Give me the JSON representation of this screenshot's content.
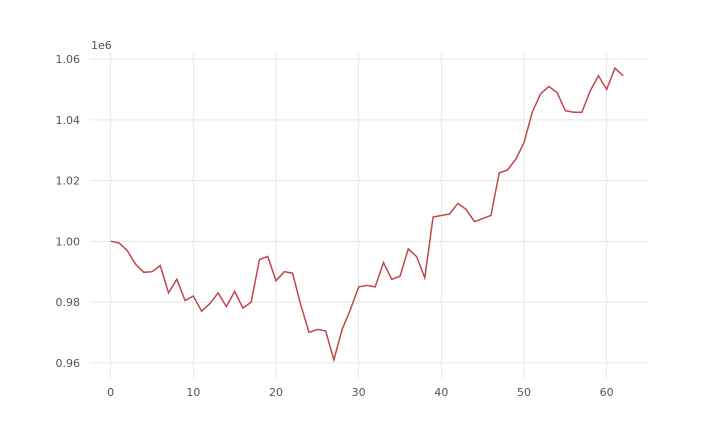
{
  "chart_data": {
    "type": "line",
    "title": "",
    "xlabel": "",
    "ylabel": "",
    "y_offset_label": "1e6",
    "grid": true,
    "xlim": [
      -2.5,
      65
    ],
    "ylim": [
      955000,
      1062000
    ],
    "x_ticks": [
      0,
      10,
      20,
      30,
      40,
      50,
      60
    ],
    "y_ticks": [
      960000,
      980000,
      1000000,
      1020000,
      1040000,
      1060000
    ],
    "y_tick_labels": [
      "0.96",
      "0.98",
      "1.00",
      "1.02",
      "1.04",
      "1.06"
    ],
    "line_color": "#c0474a",
    "series": [
      {
        "x": [
          0,
          1,
          2,
          3,
          4,
          5,
          6,
          7,
          8,
          9,
          10,
          11,
          12,
          13,
          14,
          15,
          16,
          17,
          18,
          19,
          20,
          21,
          22,
          23,
          24,
          25,
          26,
          27,
          28,
          29,
          30,
          31,
          32,
          33,
          34,
          35,
          36,
          37,
          38,
          39,
          40,
          41,
          42,
          43,
          44,
          45,
          46,
          47,
          48,
          49,
          50,
          51,
          52,
          53,
          54,
          55,
          56,
          57,
          58,
          59,
          60,
          61,
          62
        ],
        "values": [
          1000000,
          999500,
          997000,
          992500,
          989800,
          990000,
          992000,
          983000,
          987500,
          980500,
          982000,
          977000,
          979500,
          983000,
          978500,
          983500,
          978000,
          980000,
          994000,
          995000,
          987000,
          990000,
          989500,
          979000,
          970000,
          971000,
          970500,
          961000,
          971000,
          977500,
          985000,
          985500,
          985000,
          993000,
          987500,
          988500,
          997500,
          995000,
          988000,
          1008000,
          1008500,
          1009000,
          1012500,
          1010500,
          1006500,
          1007500,
          1008500,
          1022500,
          1023500,
          1027000,
          1032500,
          1042500,
          1048500,
          1051000,
          1049000,
          1043000,
          1042500,
          1042500,
          1049500,
          1054500,
          1050000,
          1057000,
          1054500
        ]
      }
    ]
  }
}
